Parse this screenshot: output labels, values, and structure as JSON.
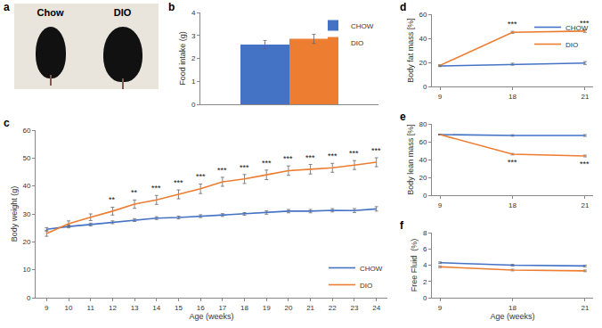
{
  "chart_data": [
    {
      "panel": "a",
      "type": "image",
      "labels": [
        "Chow",
        "DIO"
      ]
    },
    {
      "panel": "b",
      "type": "bar",
      "categories": [
        null
      ],
      "series": [
        {
          "name": "CHOW",
          "color": "#4472c4",
          "values": [
            2.6
          ],
          "errors": [
            0.18
          ]
        },
        {
          "name": "DIO",
          "color": "#ed7d31",
          "values": [
            2.85
          ],
          "errors": [
            0.2
          ]
        }
      ],
      "y_label": "Food intake (g)",
      "ylim": [
        0,
        4
      ],
      "yticks": [
        0,
        1,
        2,
        3,
        4
      ],
      "legend": "upper right",
      "tick_labels": "y",
      "grid": false
    },
    {
      "panel": "c",
      "type": "line",
      "x": [
        9,
        10,
        11,
        12,
        13,
        14,
        15,
        16,
        17,
        18,
        19,
        20,
        21,
        22,
        23,
        24
      ],
      "series": [
        {
          "name": "CHOW",
          "color": "#4472c4",
          "values": [
            24.5,
            25.5,
            26.2,
            27,
            27.8,
            28.5,
            28.7,
            29.2,
            29.6,
            30,
            30.5,
            31,
            31,
            31.3,
            31.2,
            31.8
          ],
          "errors": [
            0.6,
            0.5,
            0.5,
            0.5,
            0.5,
            0.5,
            0.5,
            0.5,
            0.5,
            0.5,
            0.6,
            0.6,
            0.6,
            0.6,
            0.7,
            0.8
          ]
        },
        {
          "name": "DIO",
          "color": "#ed7d31",
          "values": [
            23,
            26.5,
            28.8,
            31,
            33.5,
            35,
            37,
            39,
            41.5,
            42.5,
            44,
            45.5,
            46,
            46.5,
            47.5,
            48.5
          ],
          "errors": [
            1,
            1,
            1.2,
            1.4,
            1.5,
            1.6,
            1.6,
            1.7,
            1.6,
            1.6,
            1.7,
            1.7,
            1.7,
            1.6,
            1.6,
            1.6
          ]
        }
      ],
      "x_label": "Age (weeks)",
      "y_label": "Body weight (g)",
      "xlim": [
        8.5,
        24.5
      ],
      "xticks": [
        9,
        10,
        11,
        12,
        13,
        14,
        15,
        16,
        17,
        18,
        19,
        20,
        21,
        22,
        23,
        24
      ],
      "ylim": [
        0,
        60
      ],
      "yticks": [
        0,
        10,
        20,
        30,
        40,
        50,
        60
      ],
      "legend": "lower right",
      "grid": false,
      "annotations": [
        {
          "x": 12,
          "text": "**"
        },
        {
          "x": 13,
          "text": "**"
        },
        {
          "x": 14,
          "text": "***"
        },
        {
          "x": 15,
          "text": "***"
        },
        {
          "x": 16,
          "text": "***"
        },
        {
          "x": 17,
          "text": "***"
        },
        {
          "x": 18,
          "text": "***"
        },
        {
          "x": 19,
          "text": "***"
        },
        {
          "x": 20,
          "text": "***"
        },
        {
          "x": 21,
          "text": "***"
        },
        {
          "x": 22,
          "text": "***"
        },
        {
          "x": 23,
          "text": "***"
        },
        {
          "x": 24,
          "text": "***"
        }
      ]
    },
    {
      "panel": "d",
      "type": "line",
      "categories": [
        "9",
        "18",
        "21"
      ],
      "series": [
        {
          "name": "CHOW",
          "color": "#4472c4",
          "values": [
            17,
            18.5,
            19.5
          ],
          "errors": [
            0.5,
            0.8,
            1.2
          ]
        },
        {
          "name": "DIO",
          "color": "#ed7d31",
          "values": [
            17.5,
            45,
            46
          ],
          "errors": [
            0.5,
            0.8,
            1
          ]
        }
      ],
      "y_label": "Body fat mass [%]",
      "ylim": [
        0,
        60
      ],
      "yticks": [
        0,
        20,
        40,
        60
      ],
      "legend": "upper right",
      "grid": false,
      "annotations": [
        {
          "x": "18",
          "text": "***"
        },
        {
          "x": "21",
          "text": "***"
        }
      ]
    },
    {
      "panel": "e",
      "type": "line",
      "categories": [
        "9",
        "18",
        "21"
      ],
      "series": [
        {
          "name": "CHOW",
          "color": "#4472c4",
          "values": [
            68,
            67,
            67
          ],
          "errors": [
            0.5,
            0.8,
            1
          ]
        },
        {
          "name": "DIO",
          "color": "#ed7d31",
          "values": [
            68,
            46,
            44
          ],
          "errors": [
            0.5,
            0.8,
            1
          ]
        }
      ],
      "y_label": "Body lean mass [%]",
      "ylim": [
        0,
        80
      ],
      "yticks": [
        0,
        20,
        40,
        60,
        80
      ],
      "grid": false,
      "annotations": [
        {
          "x": "18",
          "text": "***"
        },
        {
          "x": "21",
          "text": "***"
        }
      ]
    },
    {
      "panel": "f",
      "type": "line",
      "categories": [
        "9",
        "18",
        "21"
      ],
      "series": [
        {
          "name": "CHOW",
          "color": "#4472c4",
          "values": [
            4.3,
            4.0,
            3.9
          ],
          "errors": [
            0.1,
            0.1,
            0.1
          ]
        },
        {
          "name": "DIO",
          "color": "#ed7d31",
          "values": [
            3.8,
            3.4,
            3.3
          ],
          "errors": [
            0.1,
            0.1,
            0.1
          ]
        }
      ],
      "x_label": "Age (weeks)",
      "y_label": "Free Fluid  (%)",
      "ylim": [
        0,
        8
      ],
      "yticks": [
        0,
        2,
        4,
        6,
        8
      ],
      "grid": false
    }
  ]
}
